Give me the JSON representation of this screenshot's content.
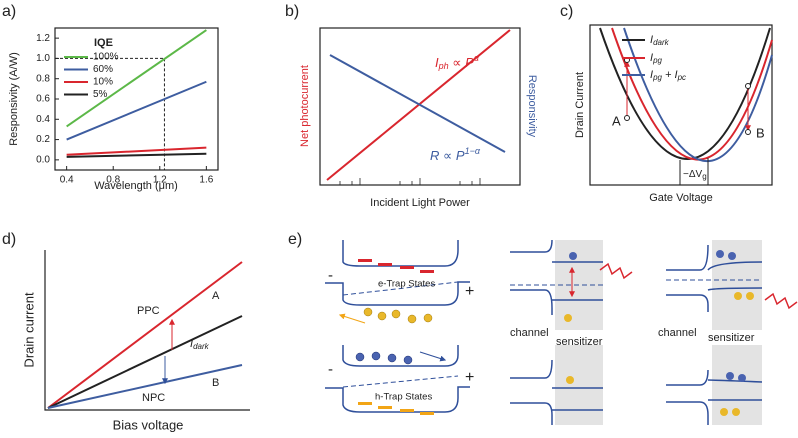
{
  "panels": {
    "a": {
      "label": "a)",
      "chart_data": {
        "type": "line",
        "y_label": "Responsivity (A/W)",
        "x_label": "Wavelength (μm)",
        "legend_title": "IQE",
        "x": [
          0.4,
          1.6
        ],
        "series": [
          {
            "name": "100%",
            "color": "#5cb848",
            "values": [
              0.33,
              1.28
            ]
          },
          {
            "name": "60%",
            "color": "#3e5da0",
            "values": [
              0.2,
              0.77
            ]
          },
          {
            "name": "10%",
            "color": "#d9262e",
            "values": [
              0.05,
              0.12
            ]
          },
          {
            "name": "5%",
            "color": "#222222",
            "values": [
              0.03,
              0.06
            ]
          }
        ],
        "xlim": [
          0.3,
          1.7
        ],
        "ylim": [
          -0.1,
          1.3
        ],
        "xticks": [
          0.4,
          0.8,
          1.2,
          1.6
        ],
        "yticks": [
          {
            "value": 0,
            "label": "0.0"
          },
          0.2,
          0.4,
          0.6,
          0.8,
          {
            "value": 1,
            "label": "1.0"
          },
          1.2
        ],
        "guide_x": 1.24,
        "guide_y": 1
      }
    },
    "b": {
      "label": "b)",
      "left_label": "Net photocurrent",
      "right_label": "Responsivity",
      "x_label": "Incident Light Power",
      "formula_ph": [
        "I",
        "ph",
        " ∝ P",
        "α"
      ],
      "formula_r": [
        "R ∝ P",
        "1−α"
      ]
    },
    "c": {
      "label": "c)",
      "point_a": "A",
      "point_b": "B",
      "shift": [
        "−ΔV",
        "g"
      ],
      "legend": [
        {
          "main": "I",
          "sub": "dark"
        },
        {
          "main": "I",
          "sub": "pg"
        },
        {
          "main": "I",
          "sub": "pg",
          "mid": " + I",
          "sub2": "pc"
        }
      ],
      "y_label": "Drain Current",
      "x_label": "Gate Voltage"
    },
    "d": {
      "label": "d)",
      "ppc": "PPC",
      "a": "A",
      "dark": {
        "main": "I",
        "sub": "dark"
      },
      "npc": "NPC",
      "b": "B",
      "y_label": "Drain current",
      "x_label": "Bias voltage"
    },
    "e": {
      "label": "e)",
      "minus_top": "-",
      "plus_top": "+",
      "e_trap": "e-Trap States",
      "minus_bottom": "-",
      "plus_bottom": "+",
      "h_trap": "h-Trap States",
      "channel_left": "channel",
      "sensitizer_left": "sensitizer",
      "channel_right": "channel",
      "sensitizer_right": "sensitizer"
    }
  }
}
